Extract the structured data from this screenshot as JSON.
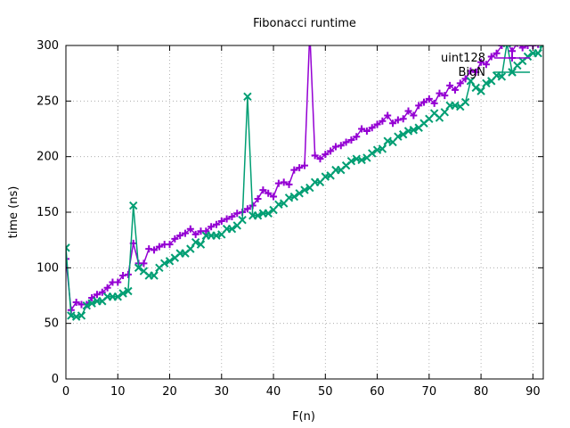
{
  "chart_data": {
    "type": "line",
    "title": "Fibonacci runtime",
    "xlabel": "F(n)",
    "ylabel": "time (ns)",
    "xlim": [
      0,
      92
    ],
    "ylim": [
      0,
      300
    ],
    "x_ticks": [
      0,
      10,
      20,
      30,
      40,
      50,
      60,
      70,
      80,
      90
    ],
    "y_ticks": [
      0,
      50,
      100,
      150,
      200,
      250,
      300
    ],
    "grid": true,
    "legend_position": "top-right",
    "x": [
      0,
      1,
      2,
      3,
      4,
      5,
      6,
      7,
      8,
      9,
      10,
      11,
      12,
      13,
      14,
      15,
      16,
      17,
      18,
      19,
      20,
      21,
      22,
      23,
      24,
      25,
      26,
      27,
      28,
      29,
      30,
      31,
      32,
      33,
      34,
      35,
      36,
      37,
      38,
      39,
      40,
      41,
      42,
      43,
      44,
      45,
      46,
      47,
      48,
      49,
      50,
      51,
      52,
      53,
      54,
      55,
      56,
      57,
      58,
      59,
      60,
      61,
      62,
      63,
      64,
      65,
      66,
      67,
      68,
      69,
      70,
      71,
      72,
      73,
      74,
      75,
      76,
      77,
      78,
      79,
      80,
      81,
      82,
      83,
      84,
      85,
      86,
      87,
      88,
      89,
      90,
      91,
      92
    ],
    "series": [
      {
        "name": "uint128",
        "color": "#9400d3",
        "marker": "plus",
        "values": [
          108,
          62,
          69,
          67,
          67,
          73,
          76,
          78,
          82,
          87,
          87,
          93,
          94,
          122,
          104,
          104,
          117,
          116,
          119,
          121,
          121,
          126,
          129,
          131,
          135,
          130,
          133,
          133,
          137,
          139,
          142,
          144,
          146,
          149,
          150,
          153,
          156,
          162,
          170,
          167,
          164,
          176,
          177,
          175,
          188,
          190,
          192,
          312,
          201,
          198,
          202,
          205,
          209,
          210,
          213,
          215,
          218,
          225,
          223,
          226,
          229,
          232,
          237,
          230,
          233,
          234,
          241,
          237,
          246,
          249,
          252,
          248,
          257,
          255,
          264,
          260,
          266,
          270,
          277,
          276,
          285,
          283,
          290,
          293,
          300,
          303,
          295,
          302,
          298,
          300,
          300,
          301,
          303
        ]
      },
      {
        "name": "BigN",
        "color": "#009e73",
        "marker": "cross",
        "values": [
          118,
          57,
          56,
          57,
          66,
          68,
          70,
          70,
          74,
          74,
          74,
          77,
          79,
          156,
          100,
          97,
          93,
          93,
          100,
          104,
          106,
          109,
          113,
          113,
          117,
          123,
          121,
          129,
          129,
          129,
          130,
          135,
          135,
          138,
          143,
          254,
          147,
          147,
          149,
          149,
          152,
          157,
          158,
          163,
          164,
          167,
          170,
          172,
          177,
          177,
          182,
          183,
          188,
          188,
          192,
          196,
          198,
          197,
          199,
          203,
          206,
          207,
          214,
          213,
          218,
          220,
          223,
          224,
          226,
          230,
          234,
          239,
          235,
          240,
          246,
          246,
          245,
          249,
          268,
          262,
          259,
          266,
          268,
          273,
          272,
          302,
          276,
          282,
          286,
          290,
          293,
          293,
          301
        ]
      }
    ]
  }
}
